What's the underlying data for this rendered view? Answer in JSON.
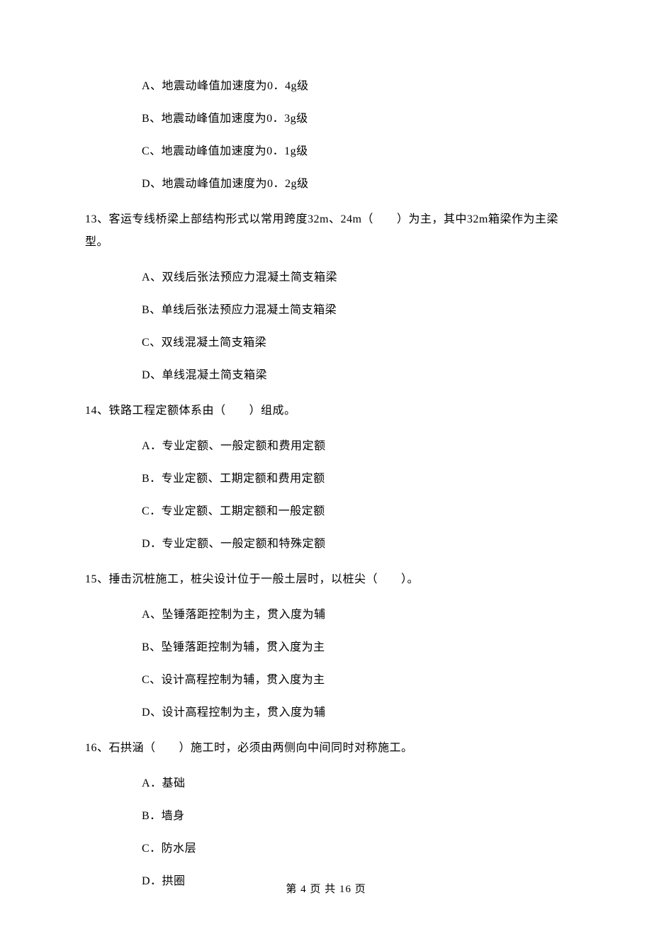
{
  "orphan_options": [
    "A、地震动峰值加速度为0．4g级",
    "B、地震动峰值加速度为0．3g级",
    "C、地震动峰值加速度为0．1g级",
    "D、地震动峰值加速度为0．2g级"
  ],
  "questions": [
    {
      "text": "13、客运专线桥梁上部结构形式以常用跨度32m、24m（　　）为主，其中32m箱梁作为主梁型。",
      "options": [
        "A、双线后张法预应力混凝土简支箱梁",
        "B、单线后张法预应力混凝土简支箱梁",
        "C、双线混凝土简支箱梁",
        "D、单线混凝土简支箱梁"
      ]
    },
    {
      "text": "14、铁路工程定额体系由（　　）组成。",
      "options": [
        "A．专业定额、一般定额和费用定额",
        "B．专业定额、工期定额和费用定额",
        "C．专业定额、工期定额和一般定额",
        "D．专业定额、一般定额和特殊定额"
      ]
    },
    {
      "text": "15、捶击沉桩施工，桩尖设计位于一般土层时，以桩尖（　　）。",
      "options": [
        "A、坠锤落距控制为主，贯入度为辅",
        "B、坠锤落距控制为辅，贯入度为主",
        "C、设计高程控制为辅，贯入度为主",
        "D、设计高程控制为主，贯入度为辅"
      ]
    },
    {
      "text": "16、石拱涵（　　）施工时，必须由两侧向中间同时对称施工。",
      "options": [
        "A．基础",
        "B．墙身",
        "C．防水层",
        "D．拱圈"
      ]
    }
  ],
  "footer": "第 4 页 共 16 页"
}
